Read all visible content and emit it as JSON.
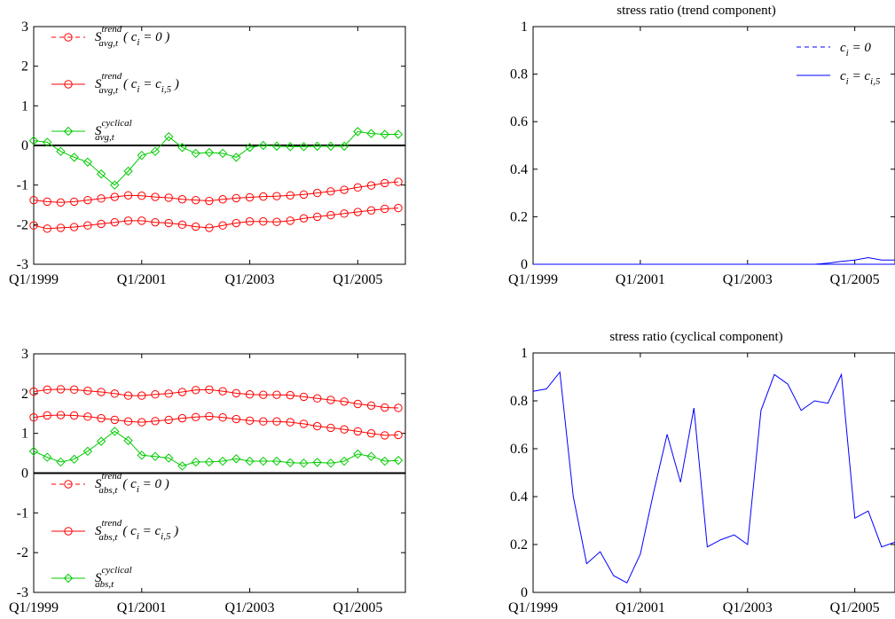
{
  "chart_data": [
    {
      "type": "line",
      "title": "",
      "xlabel": "",
      "ylabel": "",
      "x": [
        "Q1/1999",
        "Q2/1999",
        "Q3/1999",
        "Q4/1999",
        "Q1/2000",
        "Q2/2000",
        "Q3/2000",
        "Q4/2000",
        "Q1/2001",
        "Q2/2001",
        "Q3/2001",
        "Q4/2001",
        "Q1/2002",
        "Q2/2002",
        "Q3/2002",
        "Q4/2002",
        "Q1/2003",
        "Q2/2003",
        "Q3/2003",
        "Q4/2003",
        "Q1/2004",
        "Q2/2004",
        "Q3/2004",
        "Q4/2004",
        "Q1/2005",
        "Q2/2005",
        "Q3/2005",
        "Q4/2005"
      ],
      "xticks": [
        "Q1/1999",
        "Q1/2001",
        "Q1/2003",
        "Q1/2005"
      ],
      "ylim": [
        -3,
        3
      ],
      "yticks": [
        3,
        2,
        1,
        0,
        -1,
        -2,
        -3
      ],
      "zero_line": true,
      "legend_position": "top-left",
      "series": [
        {
          "name_main": "S",
          "name_sup": "trend",
          "name_sub": "avg,t",
          "condition": "( c",
          "condition_sub": "i",
          "condition_rest": " = 0 )",
          "color": "#ff0000",
          "style": "dashed",
          "marker": "circle",
          "values": [
            -1.38,
            -1.42,
            -1.44,
            -1.42,
            -1.38,
            -1.34,
            -1.3,
            -1.26,
            -1.27,
            -1.3,
            -1.32,
            -1.36,
            -1.38,
            -1.4,
            -1.36,
            -1.33,
            -1.31,
            -1.29,
            -1.28,
            -1.26,
            -1.24,
            -1.2,
            -1.16,
            -1.12,
            -1.06,
            -1.01,
            -0.95,
            -0.92
          ]
        },
        {
          "name_main": "S",
          "name_sup": "trend",
          "name_sub": "avg,t",
          "condition": "( c",
          "condition_sub": "i",
          "condition_rest": " = c",
          "condition_rest_sub": "i,5",
          "condition_end": " )",
          "color": "#ff0000",
          "style": "solid",
          "marker": "circle",
          "values": [
            -2.02,
            -2.1,
            -2.08,
            -2.06,
            -2.02,
            -1.98,
            -1.94,
            -1.9,
            -1.9,
            -1.94,
            -1.96,
            -2.0,
            -2.05,
            -2.08,
            -2.02,
            -1.96,
            -1.92,
            -1.92,
            -1.93,
            -1.9,
            -1.84,
            -1.8,
            -1.76,
            -1.72,
            -1.68,
            -1.64,
            -1.6,
            -1.58
          ]
        },
        {
          "name_main": "S",
          "name_sup": "cyclical",
          "name_sub": "avg,t",
          "color": "#00cc00",
          "style": "solid",
          "marker": "diamond",
          "values": [
            0.12,
            0.08,
            -0.15,
            -0.3,
            -0.42,
            -0.72,
            -1.0,
            -0.65,
            -0.25,
            -0.15,
            0.22,
            -0.05,
            -0.2,
            -0.18,
            -0.2,
            -0.3,
            -0.05,
            0.0,
            -0.02,
            -0.03,
            -0.03,
            -0.02,
            -0.02,
            -0.02,
            0.35,
            0.3,
            0.28,
            0.28
          ]
        }
      ]
    },
    {
      "type": "line",
      "title": "stress ratio (trend component)",
      "xlabel": "",
      "ylabel": "",
      "x": [
        "Q1/1999",
        "Q2/1999",
        "Q3/1999",
        "Q4/1999",
        "Q1/2000",
        "Q2/2000",
        "Q3/2000",
        "Q4/2000",
        "Q1/2001",
        "Q2/2001",
        "Q3/2001",
        "Q4/2001",
        "Q1/2002",
        "Q2/2002",
        "Q3/2002",
        "Q4/2002",
        "Q1/2003",
        "Q2/2003",
        "Q3/2003",
        "Q4/2003",
        "Q1/2004",
        "Q2/2004",
        "Q3/2004",
        "Q4/2004",
        "Q1/2005",
        "Q2/2005",
        "Q3/2005",
        "Q4/2005"
      ],
      "xticks": [
        "Q1/1999",
        "Q1/2001",
        "Q1/2003",
        "Q1/2005"
      ],
      "ylim": [
        0,
        1
      ],
      "yticks": [
        "1",
        "0.8",
        "0.6",
        "0.4",
        "0.2",
        "0"
      ],
      "legend_position": "top-right",
      "series": [
        {
          "name_main": "c",
          "name_sub": "i",
          "name_rest": " = 0",
          "color": "#0000ff",
          "style": "dashed",
          "values": [
            0,
            0,
            0,
            0,
            0,
            0,
            0,
            0,
            0,
            0,
            0,
            0,
            0,
            0,
            0,
            0,
            0,
            0,
            0,
            0,
            0,
            0,
            0,
            0,
            0,
            0,
            0,
            0
          ]
        },
        {
          "name_main": "c",
          "name_sub": "i",
          "name_rest": " = c",
          "name_rest_sub": "i,5",
          "color": "#0000ff",
          "style": "solid",
          "values": [
            0,
            0,
            0,
            0,
            0,
            0,
            0,
            0,
            0,
            0,
            0,
            0,
            0,
            0,
            0,
            0,
            0,
            0,
            0,
            0,
            0,
            0,
            0.005,
            0.012,
            0.018,
            0.028,
            0.018,
            0.018
          ]
        }
      ]
    },
    {
      "type": "line",
      "title": "",
      "xlabel": "",
      "ylabel": "",
      "x": [
        "Q1/1999",
        "Q2/1999",
        "Q3/1999",
        "Q4/1999",
        "Q1/2000",
        "Q2/2000",
        "Q3/2000",
        "Q4/2000",
        "Q1/2001",
        "Q2/2001",
        "Q3/2001",
        "Q4/2001",
        "Q1/2002",
        "Q2/2002",
        "Q3/2002",
        "Q4/2002",
        "Q1/2003",
        "Q2/2003",
        "Q3/2003",
        "Q4/2003",
        "Q1/2004",
        "Q2/2004",
        "Q3/2004",
        "Q4/2004",
        "Q1/2005",
        "Q2/2005",
        "Q3/2005",
        "Q4/2005"
      ],
      "xticks": [
        "Q1/1999",
        "Q1/2001",
        "Q1/2003",
        "Q1/2005"
      ],
      "ylim": [
        -3,
        3
      ],
      "yticks": [
        3,
        2,
        1,
        0,
        -1,
        -2,
        -3
      ],
      "zero_line": true,
      "legend_position": "bottom-left",
      "series": [
        {
          "name_main": "S",
          "name_sup": "trend",
          "name_sub": "abs,t",
          "condition": "( c",
          "condition_sub": "i",
          "condition_rest": " = 0 )",
          "color": "#ff0000",
          "style": "dashed",
          "marker": "circle",
          "values": [
            1.4,
            1.45,
            1.46,
            1.45,
            1.42,
            1.38,
            1.34,
            1.3,
            1.28,
            1.31,
            1.34,
            1.38,
            1.41,
            1.43,
            1.4,
            1.36,
            1.32,
            1.3,
            1.3,
            1.28,
            1.24,
            1.18,
            1.14,
            1.1,
            1.05,
            1.0,
            0.95,
            0.96
          ]
        },
        {
          "name_main": "S",
          "name_sup": "trend",
          "name_sub": "abs,t",
          "condition": "( c",
          "condition_sub": "i",
          "condition_rest": " = c",
          "condition_rest_sub": "i,5",
          "condition_end": " )",
          "color": "#ff0000",
          "style": "solid",
          "marker": "circle",
          "values": [
            2.05,
            2.1,
            2.11,
            2.1,
            2.07,
            2.04,
            2.0,
            1.95,
            1.95,
            1.98,
            2.0,
            2.04,
            2.09,
            2.1,
            2.06,
            2.01,
            1.98,
            1.97,
            1.97,
            1.96,
            1.92,
            1.88,
            1.84,
            1.8,
            1.74,
            1.7,
            1.65,
            1.64
          ]
        },
        {
          "name_main": "S",
          "name_sup": "cyclical",
          "name_sub": "abs,t",
          "color": "#00cc00",
          "style": "solid",
          "marker": "diamond",
          "values": [
            0.55,
            0.4,
            0.28,
            0.35,
            0.55,
            0.8,
            1.05,
            0.82,
            0.45,
            0.42,
            0.38,
            0.18,
            0.28,
            0.28,
            0.3,
            0.36,
            0.3,
            0.3,
            0.3,
            0.26,
            0.25,
            0.27,
            0.25,
            0.3,
            0.48,
            0.42,
            0.3,
            0.32
          ]
        }
      ]
    },
    {
      "type": "line",
      "title": "stress ratio (cyclical component)",
      "xlabel": "",
      "ylabel": "",
      "x": [
        "Q1/1999",
        "Q2/1999",
        "Q3/1999",
        "Q4/1999",
        "Q1/2000",
        "Q2/2000",
        "Q3/2000",
        "Q4/2000",
        "Q1/2001",
        "Q2/2001",
        "Q3/2001",
        "Q4/2001",
        "Q1/2002",
        "Q2/2002",
        "Q3/2002",
        "Q4/2002",
        "Q1/2003",
        "Q2/2003",
        "Q3/2003",
        "Q4/2003",
        "Q1/2004",
        "Q2/2004",
        "Q3/2004",
        "Q4/2004",
        "Q1/2005",
        "Q2/2005",
        "Q3/2005",
        "Q4/2005"
      ],
      "xticks": [
        "Q1/1999",
        "Q1/2001",
        "Q1/2003",
        "Q1/2005"
      ],
      "ylim": [
        0,
        1
      ],
      "yticks": [
        "1",
        "0.8",
        "0.6",
        "0.4",
        "0.2",
        "0"
      ],
      "series": [
        {
          "name": "",
          "color": "#0000ff",
          "style": "solid",
          "values": [
            0.84,
            0.85,
            0.92,
            0.4,
            0.12,
            0.17,
            0.07,
            0.04,
            0.16,
            0.42,
            0.66,
            0.46,
            0.77,
            0.19,
            0.22,
            0.24,
            0.2,
            0.76,
            0.91,
            0.87,
            0.76,
            0.8,
            0.79,
            0.91,
            0.31,
            0.34,
            0.19,
            0.21
          ]
        }
      ]
    }
  ]
}
